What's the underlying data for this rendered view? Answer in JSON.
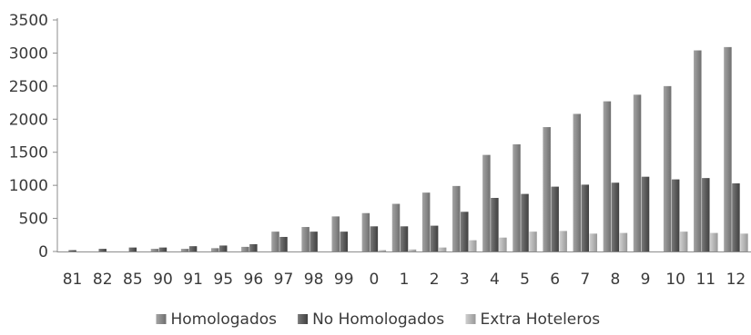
{
  "chart_data": {
    "type": "bar",
    "categories": [
      "81",
      "82",
      "85",
      "90",
      "91",
      "95",
      "96",
      "97",
      "98",
      "99",
      "0",
      "1",
      "2",
      "3",
      "4",
      "5",
      "6",
      "7",
      "8",
      "9",
      "10",
      "11",
      "12"
    ],
    "series": [
      {
        "name": "Homologados",
        "color": "#8a8a8a",
        "values": [
          0,
          0,
          0,
          40,
          40,
          50,
          70,
          300,
          370,
          530,
          580,
          720,
          890,
          990,
          1460,
          1620,
          1880,
          2080,
          2270,
          2370,
          2500,
          3040,
          3090
        ]
      },
      {
        "name": "No Homologados",
        "color": "#5c5c5c",
        "values": [
          20,
          40,
          60,
          60,
          80,
          90,
          110,
          220,
          300,
          300,
          380,
          380,
          390,
          600,
          810,
          870,
          980,
          1010,
          1040,
          1130,
          1090,
          1110,
          1030
        ]
      },
      {
        "name": "Extra Hoteleros",
        "color": "#b4b4b4",
        "values": [
          0,
          0,
          0,
          0,
          0,
          0,
          0,
          0,
          0,
          0,
          20,
          30,
          60,
          170,
          210,
          300,
          310,
          270,
          280,
          0,
          300,
          280,
          270
        ]
      }
    ],
    "title": "",
    "xlabel": "",
    "ylabel": "",
    "ylim": [
      0,
      3500
    ],
    "y_ticks": [
      0,
      500,
      1000,
      1500,
      2000,
      2500,
      3000,
      3500
    ],
    "grid": false,
    "legend_position": "bottom",
    "legend": {
      "items": [
        "Homologados",
        "No Homologados",
        "Extra Hoteleros"
      ]
    }
  }
}
